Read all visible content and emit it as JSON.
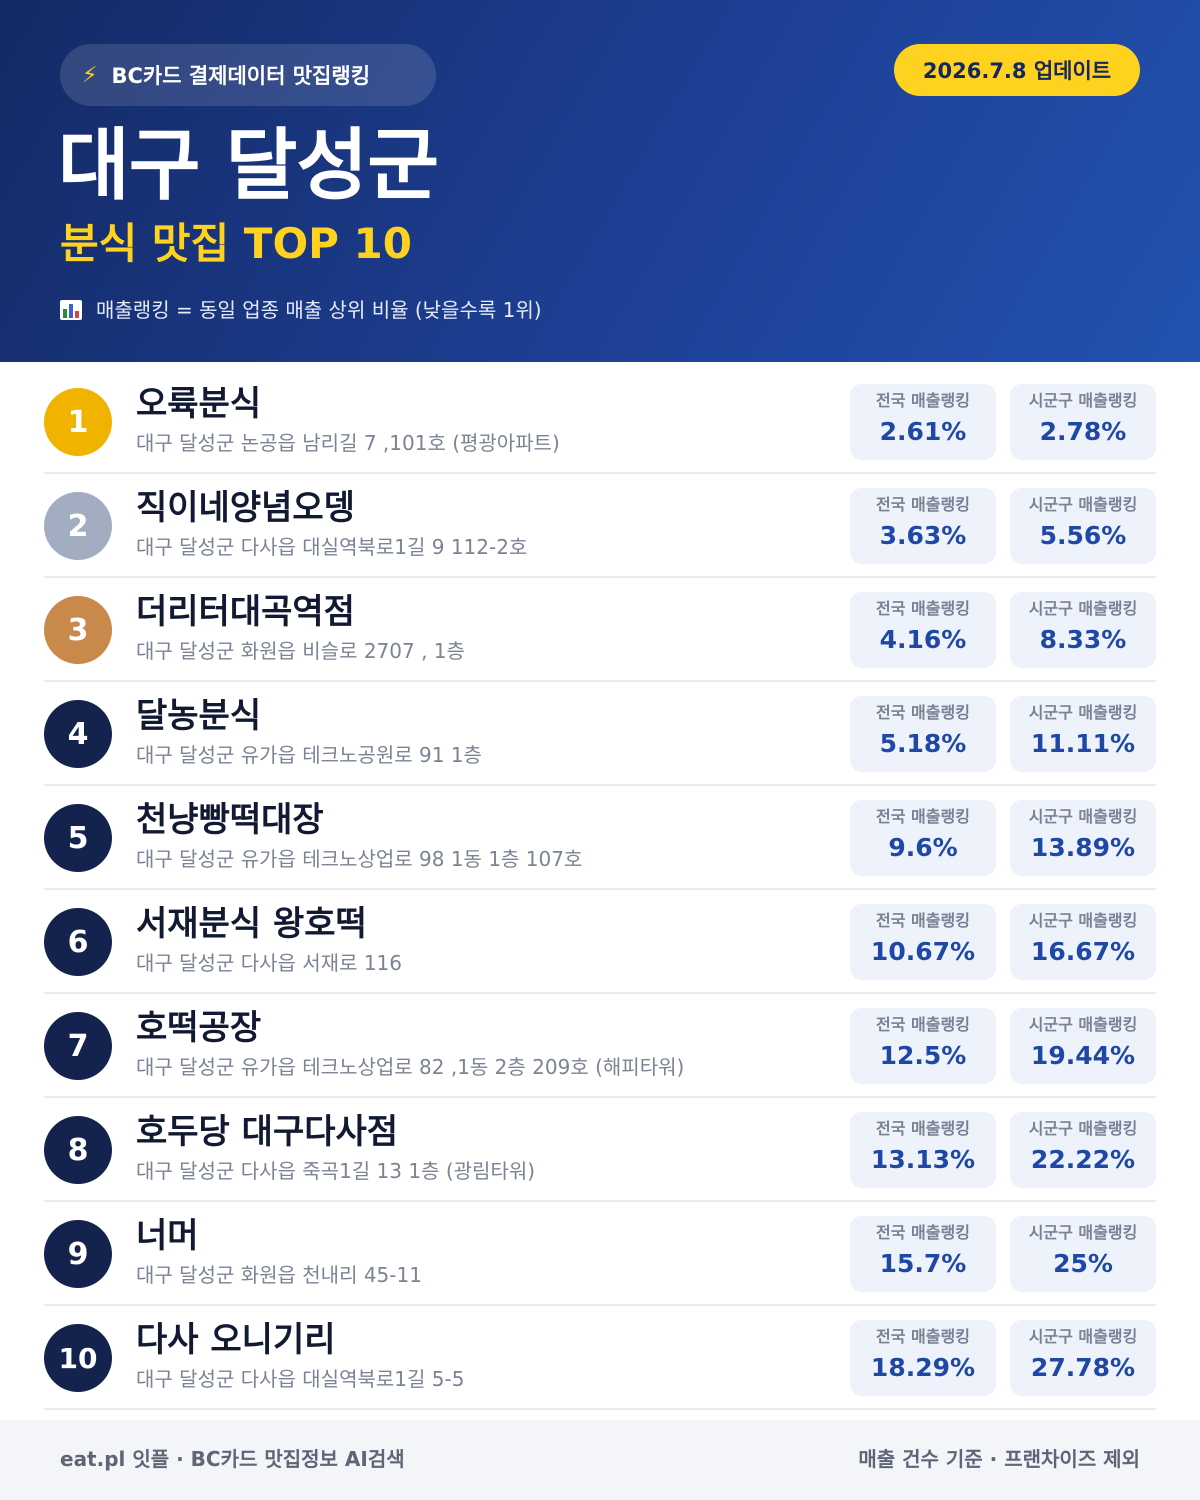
{
  "header": {
    "brand": "BC카드 결제데이터 맛집랭킹",
    "brand_icon": "lightning-icon",
    "update": "2026.7.8 업데이트",
    "title": "대구 달성군",
    "subtitle": "분식 맛집 TOP 10",
    "note": "매출랭킹 = 동일 업종 매출 상위 비율 (낮을수록 1위)",
    "note_icon": "bar-chart-icon"
  },
  "colors": {
    "header_bg": "#1d3f94",
    "accent_yellow": "#ffd21f",
    "rank_gold": "#f0b400",
    "rank_silver": "#a3adc2",
    "rank_bronze": "#c8894a",
    "rank_default": "#14224e",
    "value_blue": "#1f48a6"
  },
  "labels": {
    "national": "전국 매출랭킹",
    "local": "시군구 매출랭킹"
  },
  "items": [
    {
      "rank": "1",
      "name": "오륙분식",
      "address": "대구 달성군 논공읍 남리길 7 ,101호 (평광아파트)",
      "national": "2.61%",
      "local": "2.78%"
    },
    {
      "rank": "2",
      "name": "직이네양념오뎅",
      "address": "대구 달성군 다사읍 대실역북로1길 9 112-2호",
      "national": "3.63%",
      "local": "5.56%"
    },
    {
      "rank": "3",
      "name": "더리터대곡역점",
      "address": "대구 달성군 화원읍 비슬로 2707 , 1층",
      "national": "4.16%",
      "local": "8.33%"
    },
    {
      "rank": "4",
      "name": "달농분식",
      "address": "대구 달성군 유가읍 테크노공원로 91 1층",
      "national": "5.18%",
      "local": "11.11%"
    },
    {
      "rank": "5",
      "name": "천냥빵떡대장",
      "address": "대구 달성군 유가읍 테크노상업로 98 1동 1층 107호",
      "national": "9.6%",
      "local": "13.89%"
    },
    {
      "rank": "6",
      "name": "서재분식 왕호떡",
      "address": "대구 달성군 다사읍 서재로 116",
      "national": "10.67%",
      "local": "16.67%"
    },
    {
      "rank": "7",
      "name": "호떡공장",
      "address": "대구 달성군 유가읍 테크노상업로 82 ,1동 2층 209호 (해피타워)",
      "national": "12.5%",
      "local": "19.44%"
    },
    {
      "rank": "8",
      "name": "호두당 대구다사점",
      "address": "대구 달성군 다사읍 죽곡1길 13 1층 (광림타워)",
      "national": "13.13%",
      "local": "22.22%"
    },
    {
      "rank": "9",
      "name": "너머",
      "address": "대구 달성군 화원읍 천내리 45-11",
      "national": "15.7%",
      "local": "25%"
    },
    {
      "rank": "10",
      "name": "다사 오니기리",
      "address": "대구 달성군 다사읍 대실역북로1길 5-5",
      "national": "18.29%",
      "local": "27.78%"
    }
  ],
  "footer": {
    "left": "eat.pl 잇플 · BC카드 맛집정보 AI검색",
    "right": "매출 건수 기준 · 프랜차이즈 제외"
  }
}
